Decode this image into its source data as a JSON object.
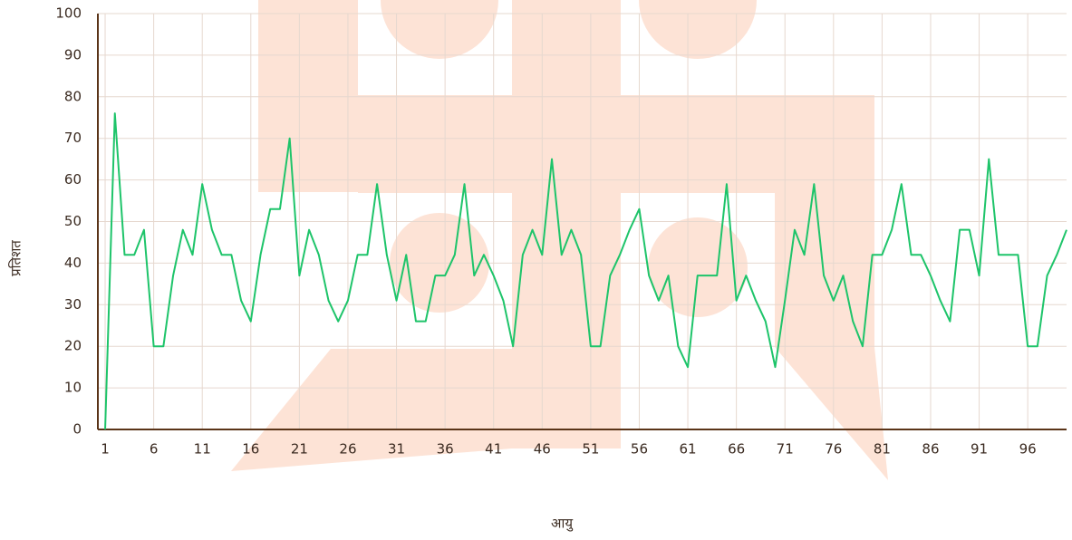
{
  "chart_data": {
    "type": "line",
    "x_label": "आयु",
    "y_label": "प्रतिशत",
    "x": [
      1,
      2,
      3,
      4,
      5,
      6,
      7,
      8,
      9,
      10,
      11,
      12,
      13,
      14,
      15,
      16,
      17,
      18,
      19,
      20,
      21,
      22,
      23,
      24,
      25,
      26,
      27,
      28,
      29,
      30,
      31,
      32,
      33,
      34,
      35,
      36,
      37,
      38,
      39,
      40,
      41,
      42,
      43,
      44,
      45,
      46,
      47,
      48,
      49,
      50,
      51,
      52,
      53,
      54,
      55,
      56,
      57,
      58,
      59,
      60,
      61,
      62,
      63,
      64,
      65,
      66,
      67,
      68,
      69,
      70,
      71,
      72,
      73,
      74,
      75,
      76,
      77,
      78,
      79,
      80,
      81,
      82,
      83,
      84,
      85,
      86,
      87,
      88,
      89,
      90,
      91,
      92,
      93,
      94,
      95,
      96,
      97,
      98,
      99,
      100
    ],
    "series": [
      {
        "color": "#1ec46a",
        "values": [
          0,
          76,
          42,
          42,
          48,
          20,
          20,
          37,
          48,
          42,
          59,
          48,
          42,
          42,
          31,
          26,
          42,
          53,
          53,
          70,
          37,
          48,
          42,
          31,
          26,
          31,
          42,
          42,
          59,
          42,
          31,
          42,
          26,
          26,
          37,
          37,
          42,
          59,
          37,
          42,
          37,
          31,
          20,
          42,
          48,
          42,
          65,
          42,
          48,
          42,
          20,
          20,
          37,
          42,
          48,
          53,
          37,
          31,
          37,
          20,
          15,
          37,
          37,
          37,
          59,
          31,
          37,
          31,
          26,
          15,
          31,
          48,
          42,
          59,
          37,
          31,
          37,
          26,
          20,
          42,
          42,
          48,
          59,
          42,
          42,
          37,
          31,
          26,
          48,
          48,
          37,
          65,
          42,
          42,
          42,
          20,
          20,
          37,
          42,
          48
        ]
      }
    ],
    "xlim": [
      0.25,
      100
    ],
    "xticks": [
      1,
      6,
      11,
      16,
      21,
      26,
      31,
      36,
      41,
      46,
      51,
      56,
      61,
      66,
      71,
      76,
      81,
      86,
      91,
      96
    ],
    "ylim": [
      0,
      100
    ],
    "yticks": [
      0,
      10,
      20,
      30,
      40,
      50,
      60,
      70,
      80,
      90,
      100
    ],
    "grid": true
  }
}
